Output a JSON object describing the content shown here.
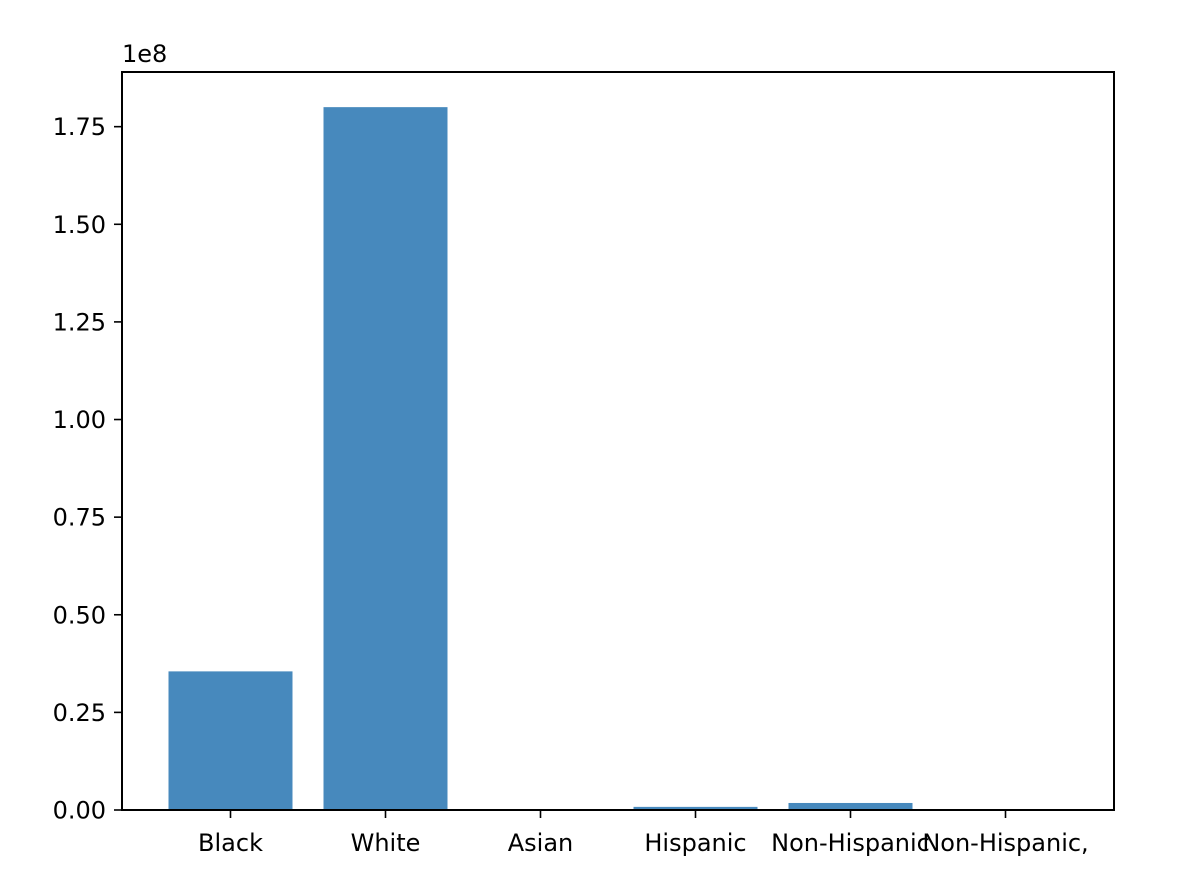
{
  "chart_data": {
    "type": "bar",
    "categories": [
      "Black",
      "White",
      "Asian",
      "Hispanic",
      "Non-Hispanic",
      "Non-Hispanic,"
    ],
    "values": [
      35500000,
      180000000,
      120000,
      800000,
      1800000,
      0
    ],
    "offset_label": "1e8",
    "ylim": [
      0,
      189000000
    ],
    "yticks": [
      0,
      25000000,
      50000000,
      75000000,
      100000000,
      125000000,
      150000000,
      175000000
    ],
    "ytick_labels": [
      "0.00",
      "0.25",
      "0.50",
      "0.75",
      "1.00",
      "1.25",
      "1.50",
      "1.75"
    ],
    "xlabel": "",
    "ylabel": "",
    "title": "",
    "grid": false,
    "bar_color": "#4789bd"
  }
}
